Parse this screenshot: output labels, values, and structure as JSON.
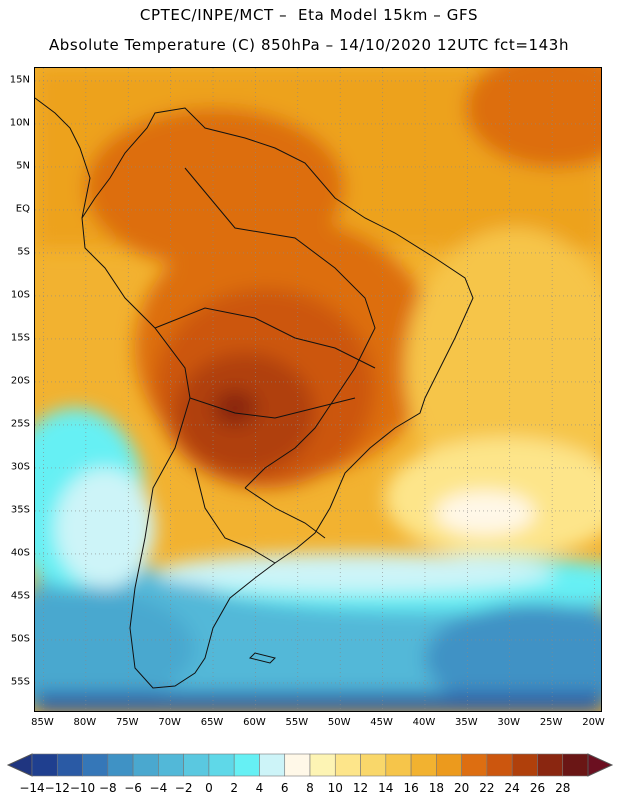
{
  "header": {
    "line1": "CPTEC/INPE/MCT –  Eta Model 15km – GFS",
    "line2": "Absolute Temperature (C) 850hPa – 14/10/2020 12UTC fct=143h"
  },
  "map": {
    "lat_labels": [
      "15N",
      "10N",
      "5N",
      "EQ",
      "5S",
      "10S",
      "15S",
      "20S",
      "25S",
      "30S",
      "35S",
      "40S",
      "45S",
      "50S",
      "55S"
    ],
    "lon_labels": [
      "85W",
      "80W",
      "75W",
      "70W",
      "65W",
      "60W",
      "55W",
      "50W",
      "45W",
      "40W",
      "35W",
      "30W",
      "25W",
      "20W"
    ],
    "lat_values": [
      15,
      10,
      5,
      0,
      -5,
      -10,
      -15,
      -20,
      -25,
      -30,
      -35,
      -40,
      -45,
      -50,
      -55
    ],
    "lon_values": [
      -85,
      -80,
      -75,
      -70,
      -65,
      -60,
      -55,
      -50,
      -45,
      -40,
      -35,
      -30,
      -25,
      -20
    ],
    "extent": {
      "lon_min": -86,
      "lon_max": -19,
      "lat_min": -58.5,
      "lat_max": 16.5
    }
  },
  "colorbar": {
    "labels": [
      "-14",
      "-12",
      "-10",
      "-8",
      "-6",
      "-4",
      "-2",
      "0",
      "2",
      "4",
      "6",
      "8",
      "10",
      "12",
      "14",
      "16",
      "18",
      "20",
      "22",
      "24",
      "26",
      "28"
    ],
    "colors": [
      "#1f3f8f",
      "#2a5aa5",
      "#3577b8",
      "#3f92c5",
      "#4aa8cf",
      "#52b8d8",
      "#5ac8e0",
      "#5fd8e8",
      "#66f0f4",
      "#cdf4f8",
      "#fff8e8",
      "#fdf4b4",
      "#fde58a",
      "#f9d76a",
      "#f6c54a",
      "#f2b230",
      "#ec9a1d",
      "#dd6e11",
      "#cc560e",
      "#b0400b",
      "#8a2610",
      "#6a1615"
    ],
    "min_arrow_color": "#1f3580",
    "max_arrow_color": "#6b0f20"
  }
}
